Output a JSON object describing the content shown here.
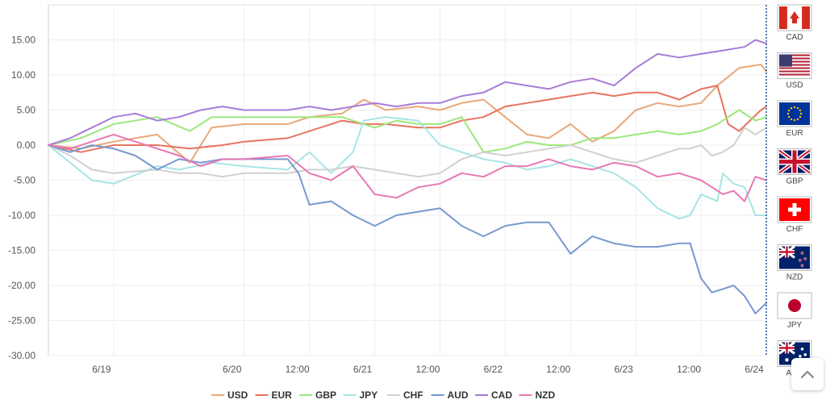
{
  "chart_data": {
    "type": "line",
    "title": "",
    "xlabel": "",
    "ylabel": "",
    "ylim": [
      -30,
      20
    ],
    "yticks": [
      15,
      10,
      5,
      0,
      -5,
      -10,
      -15,
      -20,
      -25,
      -30
    ],
    "ytick_labels": [
      "15.00",
      "10.00",
      "5.00",
      "0.00",
      "-5.00",
      "-10.00",
      "-15.00",
      "-20.00",
      "-25.00",
      "-30.00"
    ],
    "xlim": [
      0,
      132
    ],
    "x_ticks": [
      {
        "x": 12,
        "label": "6/19"
      },
      {
        "x": 36,
        "label": "6/20"
      },
      {
        "x": 48,
        "label": "12:00"
      },
      {
        "x": 60,
        "label": "6/21"
      },
      {
        "x": 72,
        "label": "12:00"
      },
      {
        "x": 84,
        "label": "6/22"
      },
      {
        "x": 96,
        "label": "12:00"
      },
      {
        "x": 108,
        "label": "6/23"
      },
      {
        "x": 120,
        "label": "12:00"
      },
      {
        "x": 132,
        "label": "6/24"
      }
    ],
    "grid": true,
    "legend_position": "bottom",
    "series": [
      {
        "name": "USD",
        "color": "#e8a878",
        "points": [
          [
            0,
            0
          ],
          [
            6,
            -0.5
          ],
          [
            12,
            0.5
          ],
          [
            20,
            1.5
          ],
          [
            26,
            -2.5
          ],
          [
            30,
            2.5
          ],
          [
            36,
            3
          ],
          [
            44,
            3
          ],
          [
            48,
            4
          ],
          [
            54,
            4.5
          ],
          [
            58,
            6.5
          ],
          [
            62,
            5
          ],
          [
            68,
            5.5
          ],
          [
            72,
            5
          ],
          [
            76,
            6
          ],
          [
            80,
            6.5
          ],
          [
            84,
            4
          ],
          [
            88,
            1.5
          ],
          [
            92,
            1
          ],
          [
            96,
            3
          ],
          [
            100,
            0.5
          ],
          [
            104,
            2
          ],
          [
            108,
            5
          ],
          [
            112,
            6
          ],
          [
            116,
            5.5
          ],
          [
            120,
            6
          ],
          [
            123,
            8.5
          ],
          [
            127,
            11
          ],
          [
            131,
            11.5
          ],
          [
            132,
            10.5
          ]
        ]
      },
      {
        "name": "EUR",
        "color": "#e87460",
        "points": [
          [
            0,
            0
          ],
          [
            6,
            -1
          ],
          [
            12,
            0
          ],
          [
            20,
            0
          ],
          [
            26,
            -0.5
          ],
          [
            32,
            0
          ],
          [
            36,
            0.5
          ],
          [
            44,
            1
          ],
          [
            48,
            2
          ],
          [
            54,
            3.5
          ],
          [
            58,
            3
          ],
          [
            62,
            3
          ],
          [
            68,
            2.5
          ],
          [
            72,
            2.5
          ],
          [
            76,
            3.5
          ],
          [
            80,
            4
          ],
          [
            84,
            5.5
          ],
          [
            88,
            6
          ],
          [
            92,
            6.5
          ],
          [
            96,
            7
          ],
          [
            100,
            7.5
          ],
          [
            104,
            7
          ],
          [
            108,
            7.5
          ],
          [
            112,
            7.5
          ],
          [
            116,
            6.5
          ],
          [
            120,
            8
          ],
          [
            123,
            8.5
          ],
          [
            125,
            3
          ],
          [
            127,
            2
          ],
          [
            131,
            5
          ],
          [
            132,
            5.5
          ]
        ]
      },
      {
        "name": "GBP",
        "color": "#9ce87c",
        "points": [
          [
            0,
            0
          ],
          [
            6,
            1
          ],
          [
            12,
            3
          ],
          [
            20,
            4
          ],
          [
            26,
            2
          ],
          [
            30,
            4
          ],
          [
            36,
            4
          ],
          [
            44,
            4
          ],
          [
            48,
            4
          ],
          [
            54,
            4
          ],
          [
            58,
            3
          ],
          [
            60,
            2.5
          ],
          [
            64,
            3.5
          ],
          [
            68,
            3
          ],
          [
            72,
            3
          ],
          [
            76,
            4
          ],
          [
            80,
            -1
          ],
          [
            84,
            -0.5
          ],
          [
            88,
            0.5
          ],
          [
            92,
            0
          ],
          [
            96,
            0
          ],
          [
            100,
            1
          ],
          [
            104,
            1
          ],
          [
            108,
            1.5
          ],
          [
            112,
            2
          ],
          [
            116,
            1.5
          ],
          [
            120,
            2
          ],
          [
            123,
            3
          ],
          [
            127,
            5
          ],
          [
            130,
            3.5
          ],
          [
            132,
            4
          ]
        ]
      },
      {
        "name": "JPY",
        "color": "#a8e4e4",
        "points": [
          [
            0,
            0
          ],
          [
            4,
            -2.5
          ],
          [
            8,
            -5
          ],
          [
            12,
            -5.5
          ],
          [
            20,
            -3
          ],
          [
            24,
            -3.5
          ],
          [
            30,
            -2.5
          ],
          [
            36,
            -3
          ],
          [
            44,
            -3.5
          ],
          [
            48,
            -1
          ],
          [
            52,
            -4
          ],
          [
            56,
            -1
          ],
          [
            58,
            3.5
          ],
          [
            62,
            4
          ],
          [
            68,
            3.5
          ],
          [
            72,
            0
          ],
          [
            76,
            -1
          ],
          [
            80,
            -2
          ],
          [
            84,
            -2.5
          ],
          [
            88,
            -3.5
          ],
          [
            92,
            -3
          ],
          [
            96,
            -2
          ],
          [
            100,
            -3
          ],
          [
            104,
            -4
          ],
          [
            108,
            -6
          ],
          [
            112,
            -9
          ],
          [
            116,
            -10.5
          ],
          [
            118,
            -10
          ],
          [
            120,
            -7
          ],
          [
            123,
            -8
          ],
          [
            124,
            -4
          ],
          [
            126,
            -5.5
          ],
          [
            128,
            -6
          ],
          [
            130,
            -10
          ],
          [
            132,
            -10
          ]
        ]
      },
      {
        "name": "CHF",
        "color": "#d0d0d0",
        "points": [
          [
            0,
            0
          ],
          [
            4,
            -1.5
          ],
          [
            8,
            -3.5
          ],
          [
            12,
            -4
          ],
          [
            20,
            -3.5
          ],
          [
            24,
            -4
          ],
          [
            28,
            -4
          ],
          [
            32,
            -4.5
          ],
          [
            36,
            -4
          ],
          [
            44,
            -4
          ],
          [
            48,
            -3.5
          ],
          [
            52,
            -3.5
          ],
          [
            56,
            -3
          ],
          [
            60,
            -3.5
          ],
          [
            64,
            -4
          ],
          [
            68,
            -4.5
          ],
          [
            72,
            -4
          ],
          [
            76,
            -2
          ],
          [
            80,
            -1
          ],
          [
            84,
            -1.5
          ],
          [
            88,
            -1
          ],
          [
            92,
            -0.5
          ],
          [
            96,
            0
          ],
          [
            100,
            -1
          ],
          [
            104,
            -2
          ],
          [
            108,
            -2.5
          ],
          [
            112,
            -1.5
          ],
          [
            116,
            -0.5
          ],
          [
            118,
            -0.5
          ],
          [
            120,
            0
          ],
          [
            122,
            -1.5
          ],
          [
            124,
            -1
          ],
          [
            126,
            0
          ],
          [
            128,
            2.5
          ],
          [
            130,
            1.5
          ],
          [
            132,
            2.5
          ]
        ]
      },
      {
        "name": "AUD",
        "color": "#7898d0",
        "points": [
          [
            0,
            0
          ],
          [
            4,
            -1
          ],
          [
            8,
            0
          ],
          [
            12,
            -0.5
          ],
          [
            16,
            -1.5
          ],
          [
            20,
            -3.5
          ],
          [
            24,
            -2
          ],
          [
            28,
            -2.5
          ],
          [
            32,
            -2
          ],
          [
            36,
            -2
          ],
          [
            44,
            -2
          ],
          [
            46,
            -4
          ],
          [
            48,
            -8.5
          ],
          [
            52,
            -8
          ],
          [
            56,
            -10
          ],
          [
            60,
            -11.5
          ],
          [
            64,
            -10
          ],
          [
            68,
            -9.5
          ],
          [
            72,
            -9
          ],
          [
            76,
            -11.5
          ],
          [
            80,
            -13
          ],
          [
            84,
            -11.5
          ],
          [
            88,
            -11
          ],
          [
            92,
            -11
          ],
          [
            96,
            -15.5
          ],
          [
            100,
            -13
          ],
          [
            104,
            -14
          ],
          [
            108,
            -14.5
          ],
          [
            112,
            -14.5
          ],
          [
            116,
            -14
          ],
          [
            118,
            -14
          ],
          [
            120,
            -19
          ],
          [
            122,
            -21
          ],
          [
            124,
            -20.5
          ],
          [
            126,
            -20
          ],
          [
            128,
            -21.5
          ],
          [
            130,
            -24
          ],
          [
            132,
            -22.5
          ]
        ]
      },
      {
        "name": "CAD",
        "color": "#a87cd8",
        "points": [
          [
            0,
            0
          ],
          [
            4,
            1
          ],
          [
            8,
            2.5
          ],
          [
            12,
            4
          ],
          [
            16,
            4.5
          ],
          [
            20,
            3.5
          ],
          [
            24,
            4
          ],
          [
            28,
            5
          ],
          [
            32,
            5.5
          ],
          [
            36,
            5
          ],
          [
            44,
            5
          ],
          [
            48,
            5.5
          ],
          [
            52,
            5
          ],
          [
            56,
            5.5
          ],
          [
            60,
            6
          ],
          [
            64,
            5.5
          ],
          [
            68,
            6
          ],
          [
            72,
            6
          ],
          [
            76,
            7
          ],
          [
            80,
            7.5
          ],
          [
            84,
            9
          ],
          [
            88,
            8.5
          ],
          [
            92,
            8
          ],
          [
            96,
            9
          ],
          [
            100,
            9.5
          ],
          [
            104,
            8.5
          ],
          [
            108,
            11
          ],
          [
            112,
            13
          ],
          [
            116,
            12.5
          ],
          [
            120,
            13
          ],
          [
            124,
            13.5
          ],
          [
            128,
            14
          ],
          [
            130,
            15
          ],
          [
            132,
            14.5
          ]
        ]
      },
      {
        "name": "NZD",
        "color": "#e878b4",
        "points": [
          [
            0,
            0
          ],
          [
            4,
            -0.5
          ],
          [
            8,
            0.5
          ],
          [
            12,
            1.5
          ],
          [
            16,
            0.5
          ],
          [
            20,
            -0.5
          ],
          [
            24,
            -1.5
          ],
          [
            28,
            -3
          ],
          [
            32,
            -2
          ],
          [
            36,
            -2
          ],
          [
            44,
            -1.5
          ],
          [
            48,
            -4
          ],
          [
            52,
            -5
          ],
          [
            56,
            -3
          ],
          [
            60,
            -7
          ],
          [
            64,
            -7.5
          ],
          [
            68,
            -6
          ],
          [
            72,
            -5.5
          ],
          [
            76,
            -4
          ],
          [
            80,
            -4.5
          ],
          [
            84,
            -3
          ],
          [
            88,
            -3
          ],
          [
            92,
            -2
          ],
          [
            96,
            -3
          ],
          [
            100,
            -3.5
          ],
          [
            104,
            -2.5
          ],
          [
            108,
            -3
          ],
          [
            112,
            -4.5
          ],
          [
            116,
            -4
          ],
          [
            120,
            -5
          ],
          [
            122,
            -6
          ],
          [
            124,
            -7
          ],
          [
            126,
            -6.5
          ],
          [
            128,
            -8
          ],
          [
            130,
            -4.5
          ],
          [
            132,
            -5
          ]
        ]
      }
    ]
  },
  "legend": {
    "items": [
      {
        "name": "USD",
        "color": "#e8a878"
      },
      {
        "name": "EUR",
        "color": "#e87460"
      },
      {
        "name": "GBP",
        "color": "#9ce87c"
      },
      {
        "name": "JPY",
        "color": "#a8e4e4"
      },
      {
        "name": "CHF",
        "color": "#d0d0d0"
      },
      {
        "name": "AUD",
        "color": "#7898d0"
      },
      {
        "name": "CAD",
        "color": "#a87cd8"
      },
      {
        "name": "NZD",
        "color": "#e878b4"
      }
    ]
  },
  "flags": [
    {
      "code": "CAD",
      "icon": "canada-flag-icon"
    },
    {
      "code": "USD",
      "icon": "usa-flag-icon"
    },
    {
      "code": "EUR",
      "icon": "eu-flag-icon"
    },
    {
      "code": "GBP",
      "icon": "uk-flag-icon"
    },
    {
      "code": "CHF",
      "icon": "swiss-flag-icon"
    },
    {
      "code": "NZD",
      "icon": "nz-flag-icon"
    },
    {
      "code": "JPY",
      "icon": "japan-flag-icon"
    },
    {
      "code": "AUD",
      "icon": "australia-flag-icon"
    }
  ],
  "scroll_top": {
    "icon": "chevron-up-icon"
  }
}
